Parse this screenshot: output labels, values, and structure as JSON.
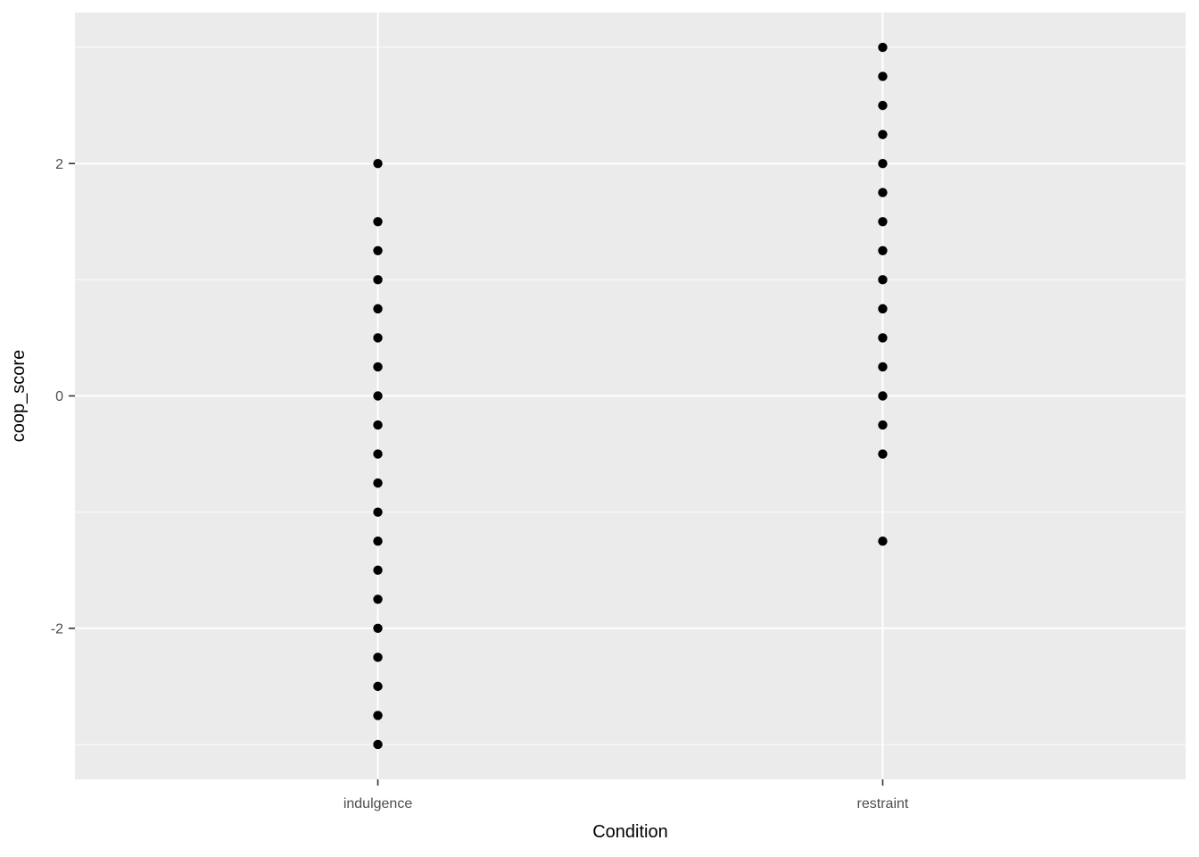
{
  "chart_data": {
    "type": "scatter",
    "title": "",
    "xlabel": "Condition",
    "ylabel": "coop_score",
    "categories": [
      "indulgence",
      "restraint"
    ],
    "series": [
      {
        "name": "indulgence",
        "values": [
          2.0,
          1.5,
          1.25,
          1.0,
          0.75,
          0.5,
          0.25,
          0.0,
          -0.25,
          -0.5,
          -0.75,
          -1.0,
          -1.25,
          -1.5,
          -1.75,
          -2.0,
          -2.25,
          -2.5,
          -2.75,
          -3.0
        ]
      },
      {
        "name": "restraint",
        "values": [
          3.0,
          2.75,
          2.5,
          2.25,
          2.0,
          1.75,
          1.5,
          1.25,
          1.0,
          0.75,
          0.5,
          0.25,
          0.0,
          -0.25,
          -0.5,
          -1.25
        ]
      }
    ],
    "ylim": [
      -3.3,
      3.3
    ],
    "y_major_ticks": [
      2,
      0,
      -2
    ],
    "y_tick_labels": [
      "2",
      "0",
      "-2"
    ],
    "y_minor_gridlines": [
      3,
      1,
      -1,
      -3
    ],
    "grid": true,
    "legend": "none",
    "point_color": "#000000",
    "panel_bg": "#EBEBEB",
    "grid_color": "#FFFFFF",
    "tick_mark_color": "#333333",
    "tick_label_color": "#4D4D4D",
    "axis_title_color": "#000000"
  }
}
